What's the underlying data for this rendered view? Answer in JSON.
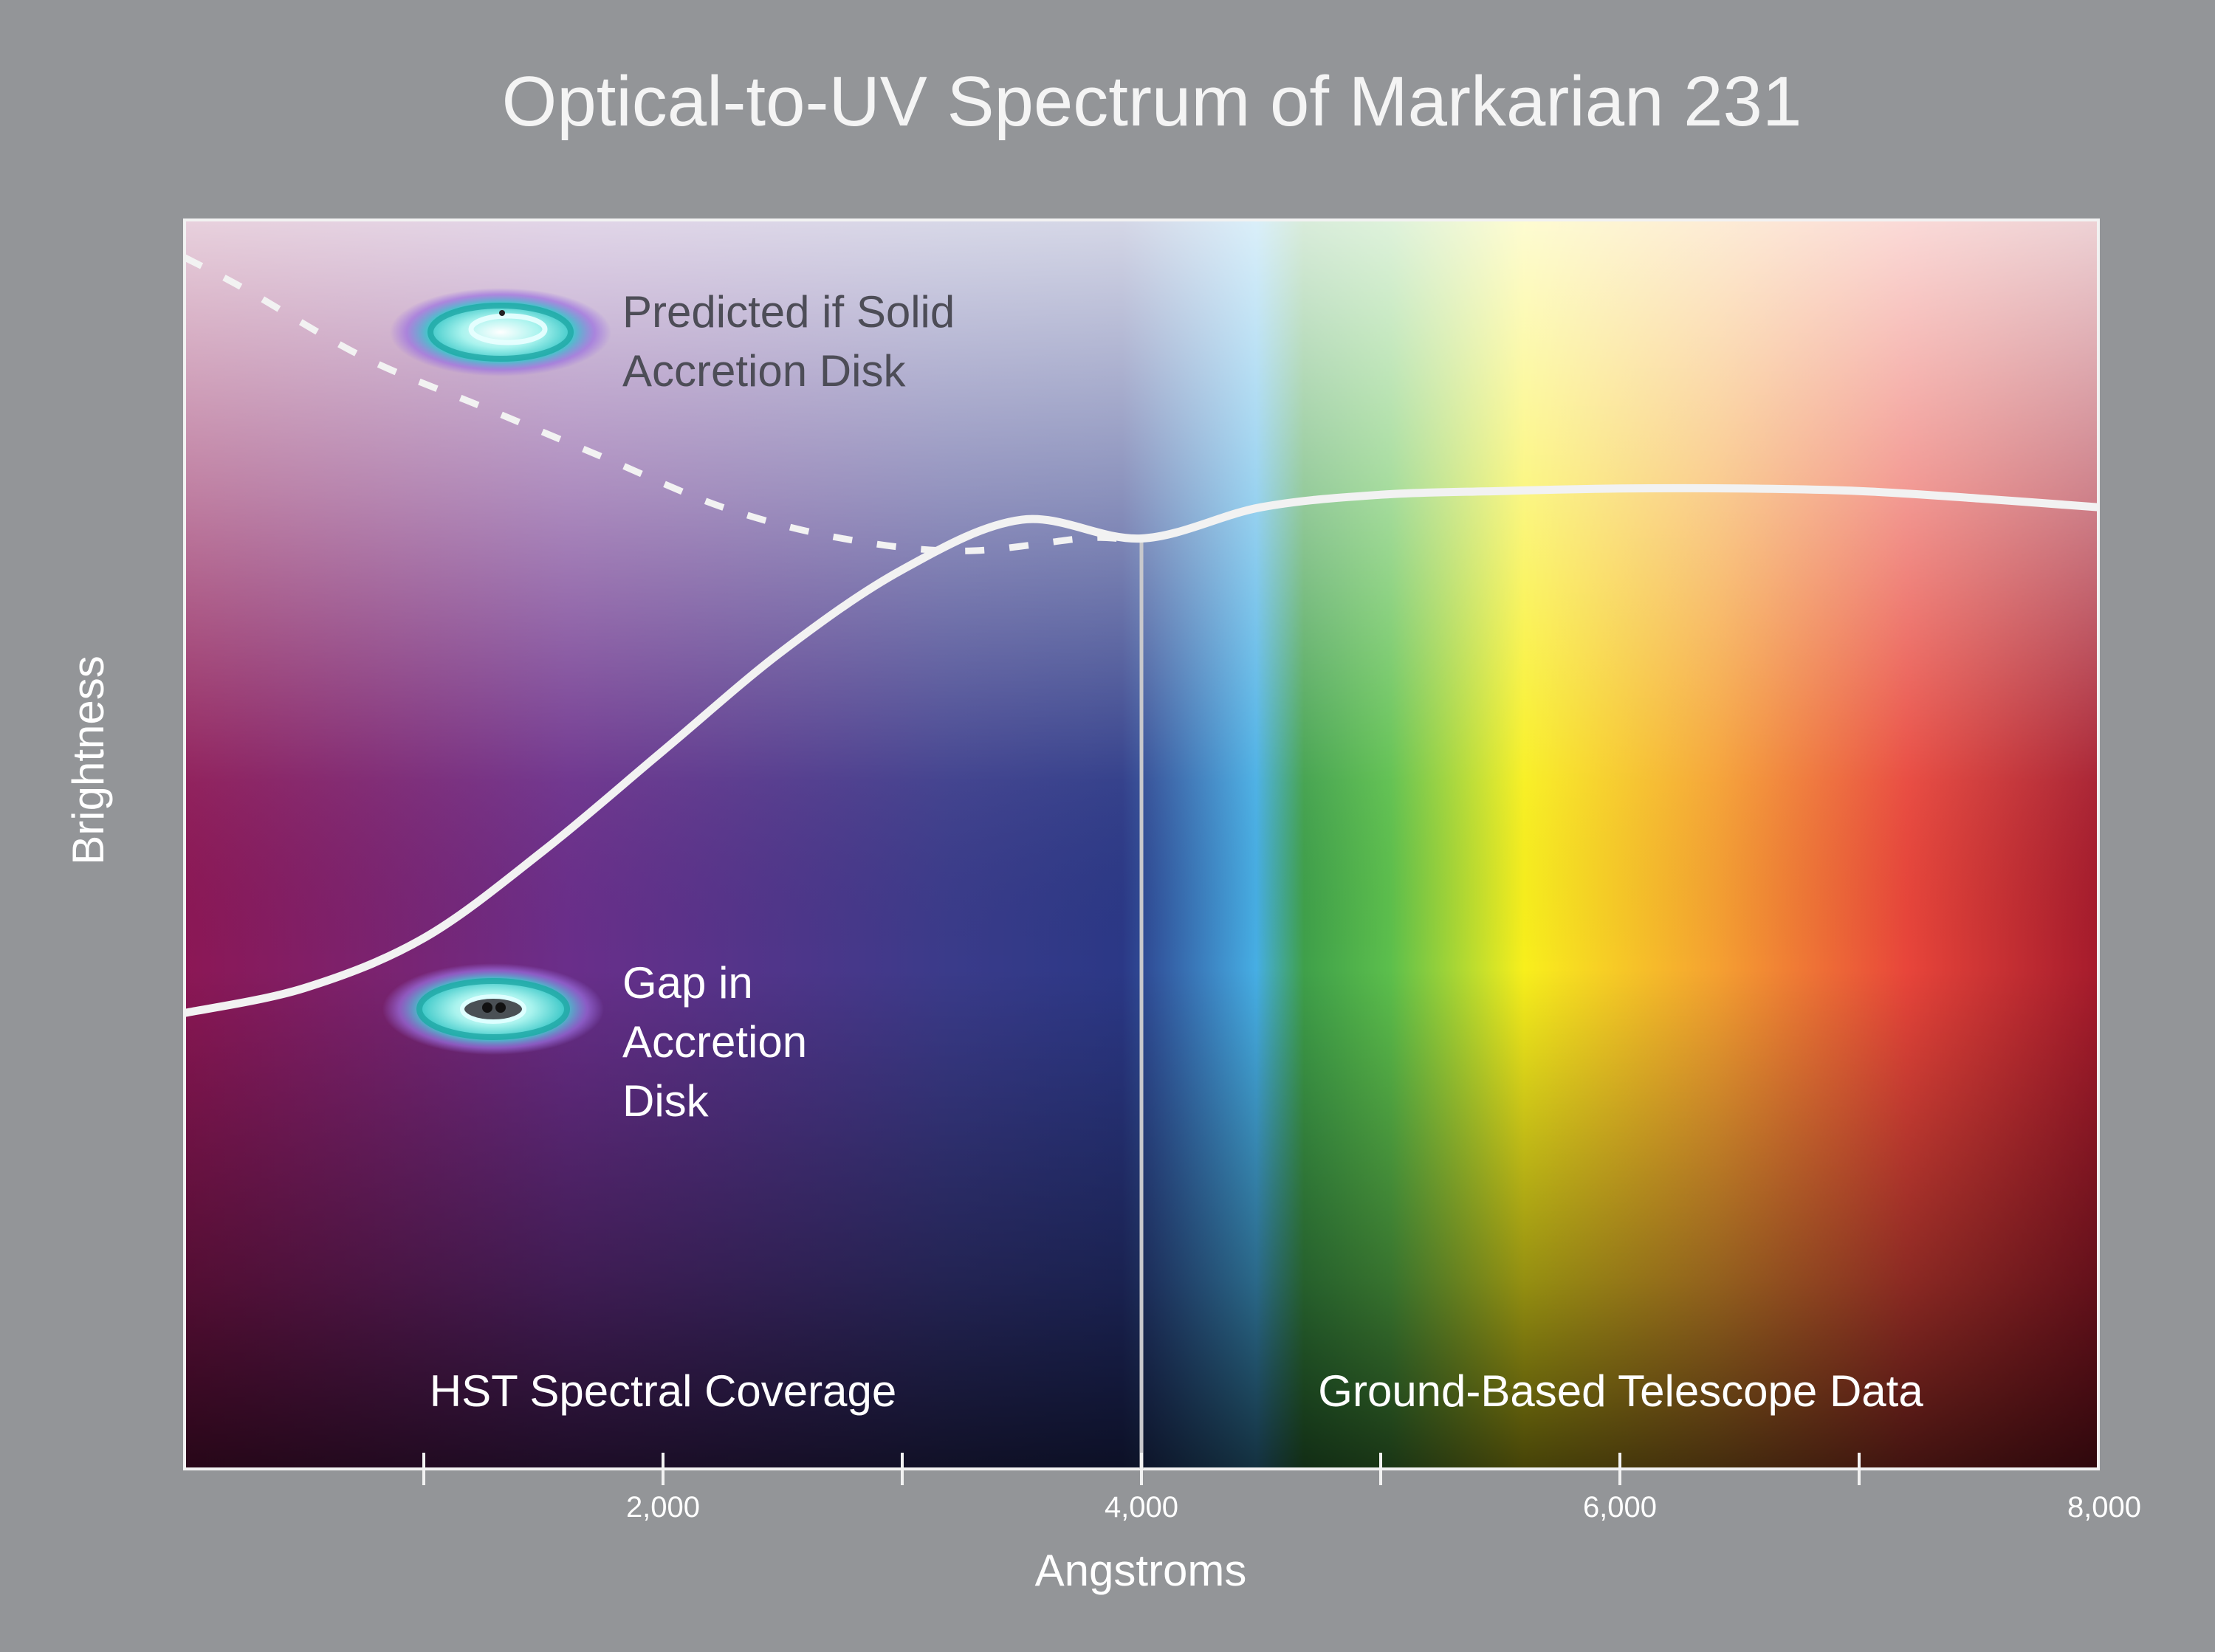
{
  "chart_data": {
    "type": "line",
    "title": "Optical-to-UV Spectrum of Markarian 231",
    "xlabel": "Angstroms",
    "ylabel": "Brightness",
    "xlim": [
      0,
      8000
    ],
    "ylim": [
      0,
      1
    ],
    "x_major_ticks": [
      2000,
      4000,
      6000,
      8000
    ],
    "x_major_tick_labels": [
      "2,000",
      "4,000",
      "6,000",
      "8,000"
    ],
    "x_minor_ticks": [
      1000,
      3000,
      5000,
      7000
    ],
    "grid": false,
    "background": "visible spectrum gradient: violet/magenta at short wavelengths through blue, green, yellow, orange to red",
    "series": [
      {
        "name": "Gap in Accretion Disk",
        "style": "solid",
        "color": "#f2f2f2",
        "x": [
          0,
          500,
          1000,
          1500,
          2000,
          2500,
          3000,
          3500,
          4000,
          4500,
          5000,
          5500,
          6000,
          6500,
          7000,
          7500,
          8000
        ],
        "y": [
          0.365,
          0.385,
          0.425,
          0.495,
          0.575,
          0.655,
          0.72,
          0.76,
          0.745,
          0.77,
          0.78,
          0.783,
          0.785,
          0.785,
          0.783,
          0.777,
          0.77
        ]
      },
      {
        "name": "Predicted if Solid Accretion Disk",
        "style": "dashed",
        "color": "#f2f2f2",
        "x": [
          0,
          250,
          750,
          1250,
          1750,
          2250,
          2750,
          3250,
          3750,
          3900
        ],
        "y": [
          0.97,
          0.945,
          0.89,
          0.85,
          0.81,
          0.77,
          0.745,
          0.735,
          0.745,
          0.745
        ]
      }
    ],
    "vertical_line": {
      "x": 4000,
      "color": "#c8c8cc"
    },
    "annotations": [
      {
        "text_lines": [
          "Predicted if Solid",
          "Accretion Disk"
        ],
        "color": "#4d4d57",
        "icon": "solid-accretion-disk-icon"
      },
      {
        "text_lines": [
          "Gap in",
          "Accretion",
          "Disk"
        ],
        "color": "#ffffff",
        "icon": "gap-accretion-disk-icon"
      }
    ],
    "region_labels": [
      {
        "text": "HST Spectral Coverage",
        "x_range": [
          0,
          4000
        ]
      },
      {
        "text": "Ground-Based Telescope Data",
        "x_range": [
          4000,
          8000
        ]
      }
    ]
  }
}
